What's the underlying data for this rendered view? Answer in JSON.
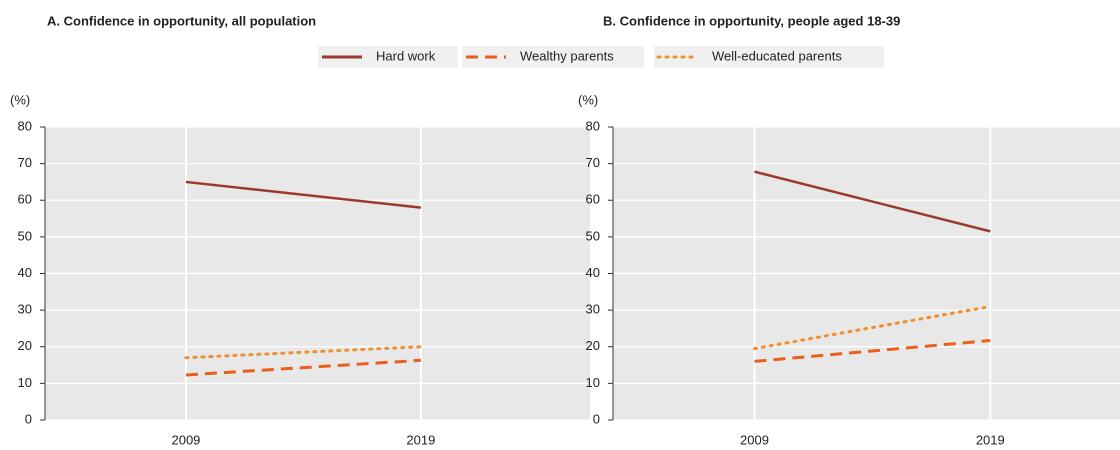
{
  "chart_data": [
    {
      "type": "line",
      "title": "A. Confidence in opportunity, all population",
      "y_label": "(%)",
      "x": [
        2009,
        2019
      ],
      "xlim": [
        2003,
        2026.2
      ],
      "xticks": [
        2009,
        2019
      ],
      "ylim": [
        0,
        80
      ],
      "yticks": [
        0,
        10,
        20,
        30,
        40,
        50,
        60,
        70,
        80
      ],
      "grid": true,
      "series": [
        {
          "name": "Hard work",
          "color": "#9b3a2c",
          "style": "solid",
          "values": [
            65,
            58
          ]
        },
        {
          "name": "Wealthy parents",
          "color": "#e8601c",
          "style": "dashed",
          "values": [
            12.3,
            16.3
          ]
        },
        {
          "name": "Well-educated parents",
          "color": "#f28e2b",
          "style": "dotted",
          "values": [
            17,
            20
          ]
        }
      ]
    },
    {
      "type": "line",
      "title": "B. Confidence in opportunity, people aged 18-39",
      "y_label": "(%)",
      "x": [
        2009,
        2019
      ],
      "xlim": [
        2003,
        2024.5
      ],
      "xticks": [
        2009,
        2019
      ],
      "ylim": [
        0,
        80
      ],
      "yticks": [
        0,
        10,
        20,
        30,
        40,
        50,
        60,
        70,
        80
      ],
      "grid": true,
      "series": [
        {
          "color": "#9b3a2c",
          "style": "solid",
          "values": [
            67.8,
            51.5
          ]
        },
        {
          "color": "#e8601c",
          "style": "dashed",
          "values": [
            16,
            21.7
          ]
        },
        {
          "color": "#f28e2b",
          "style": "dotted",
          "values": [
            19.5,
            31
          ]
        }
      ]
    }
  ]
}
